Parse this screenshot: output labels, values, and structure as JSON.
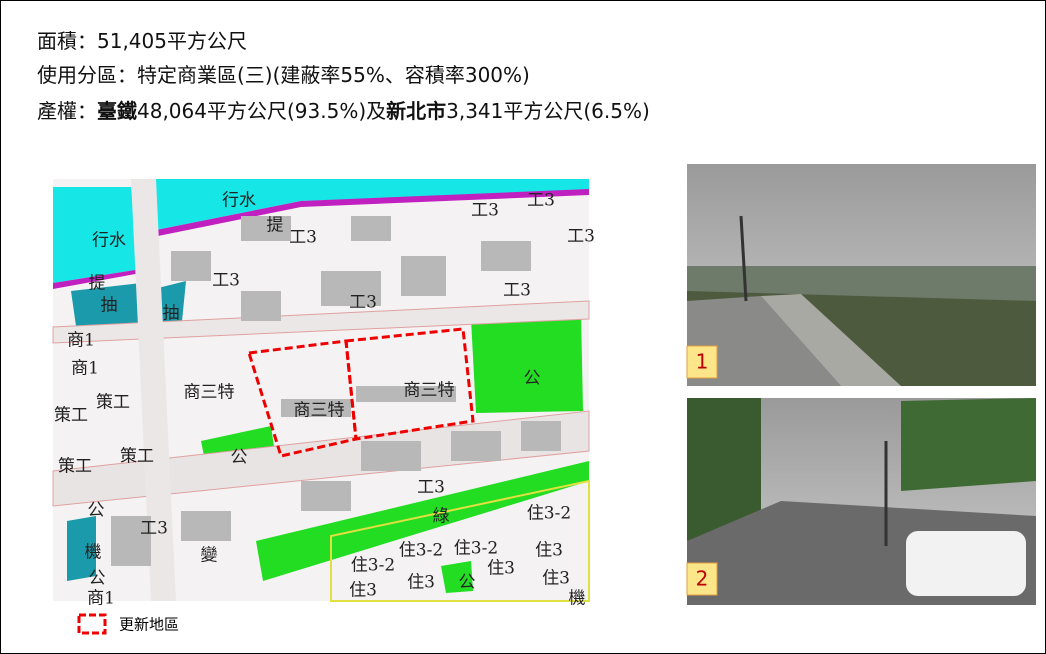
{
  "header": {
    "lines": [
      {
        "segments": [
          {
            "text": "面積：51,405平方公尺",
            "bold": false
          }
        ]
      },
      {
        "segments": [
          {
            "text": "使用分區：特定商業區(三)(建蔽率55%、容積率300%)",
            "bold": false
          }
        ]
      },
      {
        "segments": [
          {
            "text": "產權：",
            "bold": false
          },
          {
            "text": "臺鐵",
            "bold": true
          },
          {
            "text": "48,064平方公尺(93.5%)及",
            "bold": false
          },
          {
            "text": "新北市",
            "bold": true
          },
          {
            "text": "3,341平方公尺(6.5%)",
            "bold": false
          }
        ]
      }
    ]
  },
  "map": {
    "labels": [
      "行水",
      "提",
      "工3",
      "工3",
      "工3",
      "工3",
      "行水",
      "提",
      "抽",
      "抽",
      "工3",
      "工3",
      "工3",
      "商1",
      "商1",
      "商三特",
      "商三特",
      "商三特",
      "公",
      "策工",
      "策工",
      "策工",
      "策工",
      "公",
      "工3",
      "綠",
      "公",
      "機",
      "公",
      "商1",
      "工3",
      "變",
      "住3-2",
      "住3-2",
      "住3-2",
      "住3-2",
      "住3",
      "住3",
      "住3",
      "公",
      "住3",
      "住3",
      "機"
    ],
    "legend": "更新地區"
  },
  "photos": [
    {
      "label": "1"
    },
    {
      "label": "2"
    }
  ]
}
